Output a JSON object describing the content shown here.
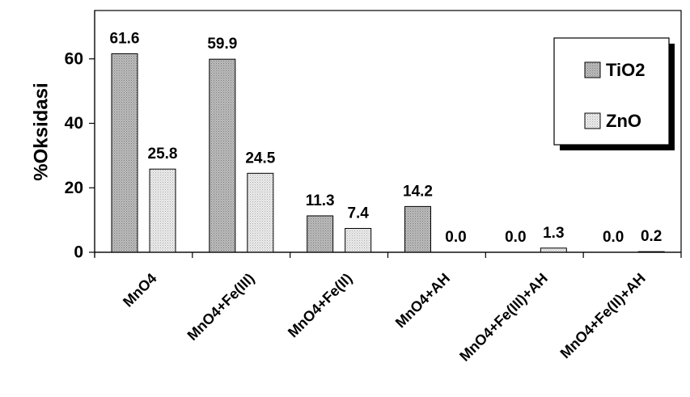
{
  "chart_data": {
    "type": "bar",
    "ylabel": "%Oksidasi",
    "xlabel": "",
    "ylim": [
      0,
      75
    ],
    "yticks": [
      0,
      20,
      40,
      60
    ],
    "grid": false,
    "legend_position": "top-right",
    "categories": [
      "MnO4",
      "MnO4+Fe(III)",
      "MnO4+Fe(II)",
      "MnO4+AH",
      "MnO4+Fe(III)+AH",
      "MnO4+Fe(II)+AH"
    ],
    "series": [
      {
        "name": "TiO2",
        "values": [
          61.6,
          59.9,
          11.3,
          14.2,
          0.0,
          0.0
        ],
        "labels": [
          "61.6",
          "59.9",
          "11.3",
          "14.2",
          "0.0",
          "0.0"
        ],
        "color": "#b0b0b0"
      },
      {
        "name": "ZnO",
        "values": [
          25.8,
          24.5,
          7.4,
          0.0,
          1.3,
          0.2
        ],
        "labels": [
          "25.8",
          "24.5",
          "7.4",
          "0.0",
          "1.3",
          "0.2"
        ],
        "color": "#e4e4e4"
      }
    ]
  }
}
